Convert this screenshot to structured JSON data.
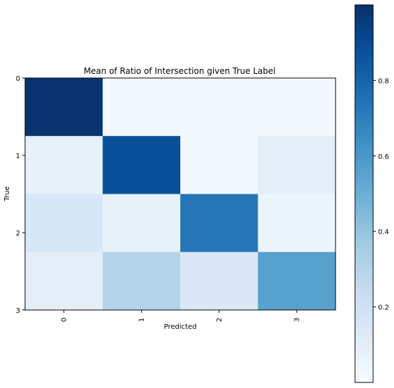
{
  "chart_data": {
    "type": "heatmap",
    "title": "Mean of Ratio of Intersection given True Label",
    "xlabel": "Predicted",
    "ylabel": "True",
    "x_categories": [
      "0",
      "1",
      "2",
      "3"
    ],
    "y_categories": [
      "0",
      "1",
      "2",
      "3"
    ],
    "values": [
      [
        0.99,
        0.02,
        0.02,
        0.02
      ],
      [
        0.08,
        0.88,
        0.02,
        0.09
      ],
      [
        0.16,
        0.08,
        0.73,
        0.05
      ],
      [
        0.1,
        0.3,
        0.14,
        0.56
      ]
    ],
    "colormap": "Blues",
    "color_range": [
      0.0,
      1.0
    ],
    "colorbar": {
      "ticks": [
        0.2,
        0.4,
        0.6,
        0.8
      ],
      "tick_labels": [
        "0.2",
        "0.4",
        "0.6",
        "0.8"
      ],
      "range": [
        0.0,
        1.0
      ]
    },
    "grid": false
  }
}
